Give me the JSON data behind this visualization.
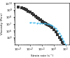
{
  "title": "",
  "xlabel": "Strain rate (s⁻¹)",
  "ylabel": "Viscosity (Pa·s)",
  "bg_color": "#ffffff",
  "plot_bg_color": "#ffffff",
  "series1": {
    "color": "#333333",
    "marker": "s",
    "marker_size": 2.5,
    "x": [
      0.001,
      0.002,
      0.003,
      0.004,
      0.005,
      0.007,
      0.01,
      0.015,
      0.02,
      0.03,
      0.04,
      0.05,
      0.07,
      0.08,
      0.1,
      0.12,
      0.15,
      0.2,
      0.25,
      0.3,
      0.4,
      0.5,
      0.7,
      1.0,
      1.5,
      2.0,
      3.0,
      4.0,
      5.0,
      7.0
    ],
    "y": [
      3000000000.0,
      2000000000.0,
      1500000000.0,
      1200000000.0,
      1000000000.0,
      700000000.0,
      500000000.0,
      300000000.0,
      200000000.0,
      120000000.0,
      80000000.0,
      60000000.0,
      40000000.0,
      35000000.0,
      25000000.0,
      20000000.0,
      15000000.0,
      12000000.0,
      10000000.0,
      8000000.0,
      6000000.0,
      5000000.0,
      3000000.0,
      1500000.0,
      700000.0,
      300000.0,
      100000.0,
      50000.0,
      20000.0,
      8000.0
    ]
  },
  "series2": {
    "color": "#44bbee",
    "marker": "o",
    "marker_size": 1.5,
    "linestyle": "--",
    "linewidth": 0.7,
    "x": [
      0.01,
      0.02,
      0.04,
      0.07,
      0.1,
      0.15,
      0.2,
      0.3,
      0.4,
      0.5,
      0.7,
      1.0,
      1.5,
      2.0,
      3.0,
      4.0,
      5.0,
      7.0,
      10.0
    ],
    "y": [
      15000000.0,
      14000000.0,
      13000000.0,
      12000000.0,
      12000000.0,
      11500000.0,
      11000000.0,
      10000000.0,
      9000000.0,
      8000000.0,
      6000000.0,
      4000000.0,
      2000000.0,
      1000000.0,
      400000.0,
      200000.0,
      80000.0,
      30000.0,
      10000.0
    ]
  },
  "xlim": [
    0.0005,
    20
  ],
  "ylim": [
    10000.0,
    10000000000.0
  ],
  "yticks": [
    100000.0,
    1000000.0,
    10000000.0,
    100000000.0,
    1000000000.0,
    10000000000.0
  ],
  "xticks": [
    0.001,
    0.01,
    0.1,
    1.0,
    10.0
  ],
  "figsize": [
    1.0,
    0.82
  ],
  "dpi": 100
}
